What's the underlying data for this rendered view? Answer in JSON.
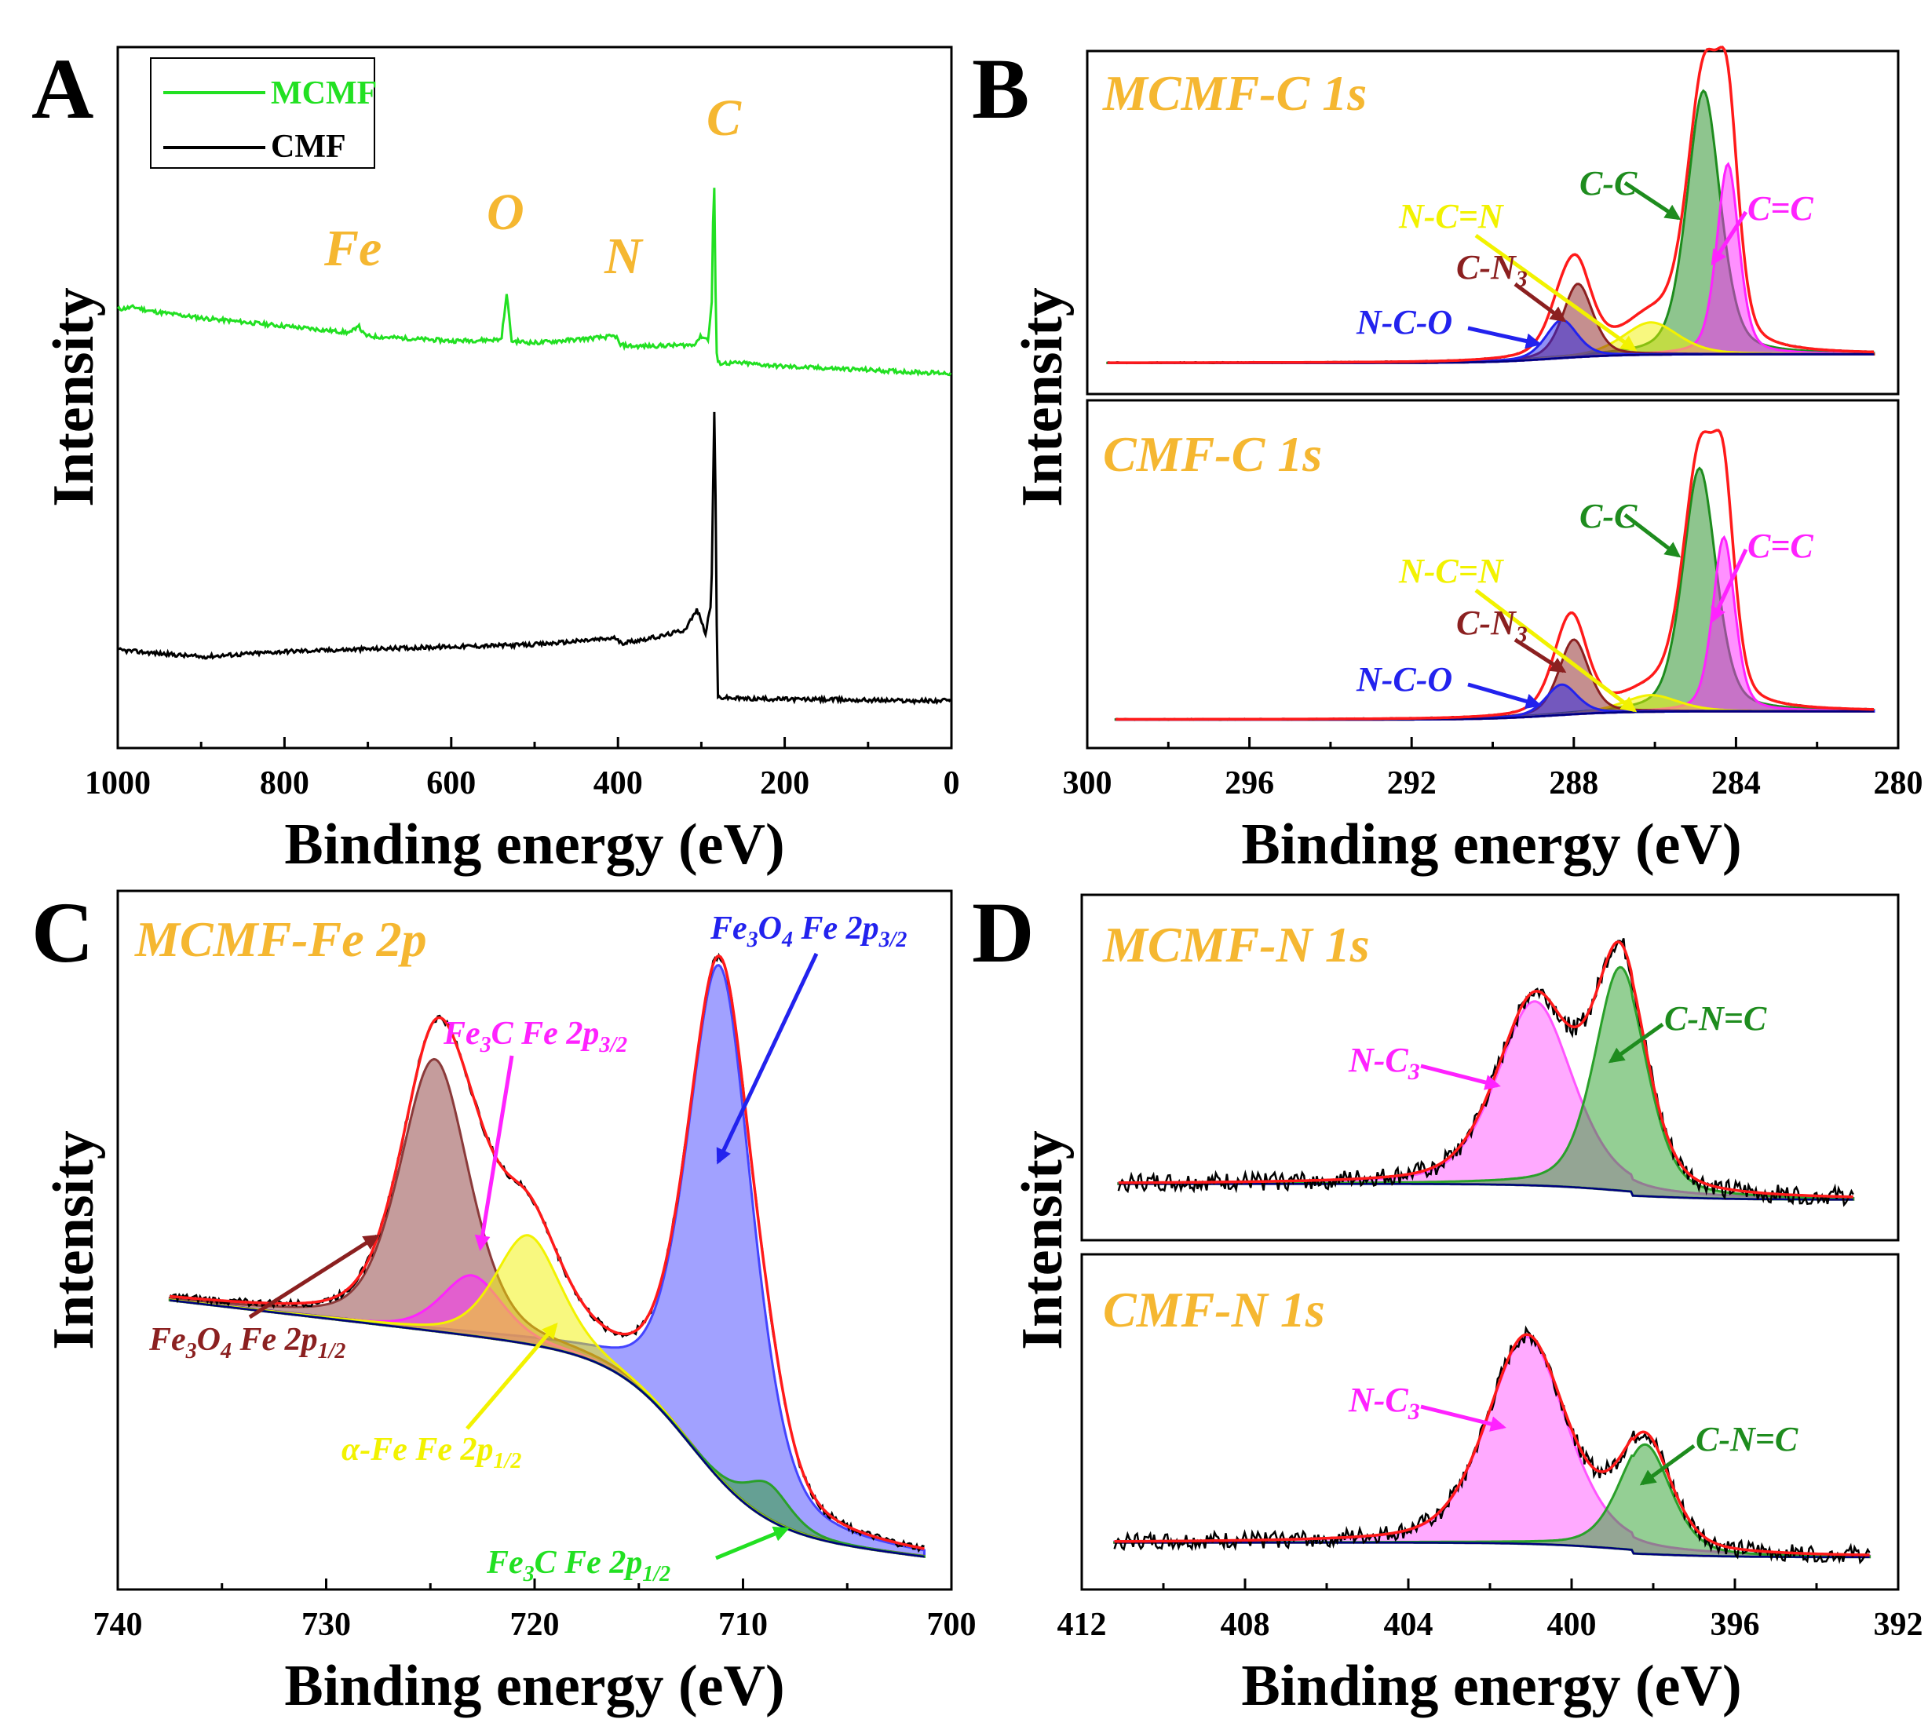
{
  "chart_data": [
    {
      "id": "A",
      "type": "line",
      "panel_letter": "A",
      "xlabel": "Binding energy (eV)",
      "ylabel": "Intensity",
      "xlim": [
        1000,
        0
      ],
      "xticks": [
        1000,
        800,
        600,
        400,
        200,
        0
      ],
      "legend": {
        "placement": "top-left",
        "entries": [
          {
            "name": "MCMF",
            "color": "#22e022"
          },
          {
            "name": "CMF",
            "color": "#000000"
          }
        ]
      },
      "element_labels": [
        {
          "text": "Fe",
          "x": 710
        },
        {
          "text": "O",
          "x": 531
        },
        {
          "text": "N",
          "x": 400
        },
        {
          "text": "C",
          "x": 284
        }
      ],
      "series": [
        {
          "name": "MCMF",
          "color": "#22e022",
          "x": [
            1000,
            980,
            960,
            900,
            800,
            720,
            712,
            705,
            700,
            600,
            540,
            533,
            528,
            500,
            402,
            398,
            380,
            310,
            300,
            292,
            287,
            285,
            284,
            282,
            280,
            250,
            200,
            100,
            50,
            0
          ],
          "y": [
            6.35,
            6.38,
            6.32,
            6.22,
            6.1,
            6.0,
            6.12,
            5.98,
            5.95,
            5.88,
            5.9,
            6.6,
            5.88,
            5.85,
            5.95,
            5.82,
            5.8,
            5.82,
            5.95,
            5.9,
            6.5,
            8.8,
            7.5,
            5.75,
            5.55,
            5.55,
            5.5,
            5.45,
            5.42,
            5.4
          ]
        },
        {
          "name": "CMF",
          "color": "#000000",
          "x": [
            1000,
            950,
            900,
            800,
            600,
            500,
            402,
            398,
            350,
            320,
            305,
            295,
            288,
            285,
            284,
            282,
            280,
            250,
            100,
            50,
            0
          ],
          "y": [
            1.3,
            1.25,
            1.2,
            1.28,
            1.35,
            1.38,
            1.48,
            1.4,
            1.5,
            1.6,
            1.9,
            1.55,
            2.0,
            4.5,
            5.2,
            2.0,
            0.6,
            0.58,
            0.56,
            0.55,
            0.55
          ]
        }
      ]
    },
    {
      "id": "B",
      "type": "line",
      "panel_letter": "B",
      "xlabel": "Binding energy (eV)",
      "ylabel": "Intensity",
      "xlim": [
        300,
        280
      ],
      "xticks": [
        300,
        296,
        292,
        288,
        284,
        280
      ],
      "subplots": [
        {
          "title": "MCMF-C 1s",
          "peaks": [
            {
              "label": "C-C",
              "center": 284.8,
              "height": 0.9,
              "width": 0.42,
              "color": "#1e8c1e"
            },
            {
              "label": "C=C",
              "center": 284.2,
              "height": 0.65,
              "width": 0.28,
              "color": "#ff22ff"
            },
            {
              "label": "N-C=N",
              "center": 286.1,
              "height": 0.11,
              "width": 0.7,
              "color": "#f2f200"
            },
            {
              "label": "C-N3",
              "center": 287.9,
              "height": 0.25,
              "width": 0.38,
              "color": "#8b2020"
            },
            {
              "label": "N-C-O",
              "center": 288.3,
              "height": 0.13,
              "width": 0.4,
              "color": "#2222ee"
            }
          ],
          "annotations": [
            {
              "text": "C-C",
              "target_x": 284.85
            },
            {
              "text": "C=C",
              "target_x": 284.25
            },
            {
              "text": "N-C=N",
              "target_x": 285.9
            },
            {
              "text": "C-N",
              "subscript": "3",
              "target_x": 287.95
            },
            {
              "text": "N-C-O",
              "target_x": 288.4
            }
          ]
        },
        {
          "title": "CMF-C 1s",
          "peaks": [
            {
              "label": "C-C",
              "center": 284.9,
              "height": 0.88,
              "width": 0.42,
              "color": "#1e8c1e"
            },
            {
              "label": "C=C",
              "center": 284.3,
              "height": 0.63,
              "width": 0.28,
              "color": "#ff22ff"
            },
            {
              "label": "N-C=N",
              "center": 286.1,
              "height": 0.06,
              "width": 0.7,
              "color": "#f2f200"
            },
            {
              "label": "C-N3",
              "center": 288.0,
              "height": 0.27,
              "width": 0.38,
              "color": "#8b2020"
            },
            {
              "label": "N-C-O",
              "center": 288.3,
              "height": 0.11,
              "width": 0.4,
              "color": "#2222ee"
            }
          ],
          "annotations": [
            {
              "text": "C-C",
              "target_x": 284.95
            },
            {
              "text": "C=C",
              "target_x": 284.35
            },
            {
              "text": "N-C=N",
              "target_x": 285.9
            },
            {
              "text": "C-N",
              "subscript": "3",
              "target_x": 288.05
            },
            {
              "text": "N-C-O",
              "target_x": 288.45
            }
          ]
        }
      ]
    },
    {
      "id": "C",
      "type": "line",
      "panel_letter": "C",
      "xlabel": "Binding energy (eV)",
      "ylabel": "Intensity",
      "xlim": [
        740,
        700
      ],
      "xticks": [
        740,
        730,
        720,
        710,
        700
      ],
      "title": "MCMF-Fe 2p",
      "peaks": [
        {
          "label": "Fe3O4 Fe 2p3/2",
          "center": 711.1,
          "height": 0.85,
          "width": 1.6,
          "color": "#4444ff"
        },
        {
          "label": "Fe3O4 Fe 2p1/2",
          "center": 724.8,
          "height": 0.45,
          "width": 1.7,
          "color": "#8b3a3a"
        },
        {
          "label": "Fe3C Fe 2p3/2",
          "center": 723.0,
          "height": 0.1,
          "width": 1.5,
          "color": "#ff22ff"
        },
        {
          "label": "α-Fe Fe 2p1/2",
          "center": 720.3,
          "height": 0.18,
          "width": 1.6,
          "color": "#f2f200"
        },
        {
          "label": "Fe3C Fe 2p1/2",
          "center": 708.8,
          "height": 0.06,
          "width": 1.1,
          "color": "#2aa02a"
        }
      ],
      "annotations": [
        {
          "main": "Fe",
          "sub1": "3",
          "mid": "O",
          "sub2": "4",
          "tail": " Fe 2p",
          "sub3": "3/2",
          "color": "#2222ee"
        },
        {
          "main": "Fe",
          "sub1": "3",
          "mid": "C Fe 2p",
          "sub2": "3/2",
          "color": "#ff22ff"
        },
        {
          "main": "Fe",
          "sub1": "3",
          "mid": "O",
          "sub2": "4",
          "tail": " Fe 2p",
          "sub3": "1/2",
          "color": "#8b2020"
        },
        {
          "main": "α-Fe Fe 2p",
          "sub1": "1/2",
          "color": "#f2f200"
        },
        {
          "main": "Fe",
          "sub1": "3",
          "mid": "C Fe 2p",
          "sub2": "1/2",
          "color": "#22e022"
        }
      ]
    },
    {
      "id": "D",
      "type": "line",
      "panel_letter": "D",
      "xlabel": "Binding energy (eV)",
      "ylabel": "Intensity",
      "xlim": [
        412,
        392
      ],
      "xticks": [
        412,
        408,
        404,
        400,
        396,
        392
      ],
      "subplots": [
        {
          "title": "MCMF-N 1s",
          "peaks": [
            {
              "label": "N-C3",
              "center": 400.9,
              "height": 0.7,
              "width": 0.95,
              "color": "#ff55ff"
            },
            {
              "label": "C-N=C",
              "center": 398.8,
              "height": 0.85,
              "width": 0.65,
              "color": "#2aa02a"
            }
          ],
          "annotations": [
            {
              "text": "N-C",
              "subscript": "3",
              "target_x": 401.3
            },
            {
              "text": "C-N=C",
              "target_x": 398.5
            }
          ]
        },
        {
          "title": "CMF-N 1s",
          "peaks": [
            {
              "label": "N-C3",
              "center": 401.1,
              "height": 0.85,
              "width": 1.0,
              "color": "#ff55ff"
            },
            {
              "label": "C-N=C",
              "center": 398.2,
              "height": 0.45,
              "width": 0.65,
              "color": "#2aa02a"
            }
          ],
          "annotations": [
            {
              "text": "N-C",
              "subscript": "3",
              "target_x": 401.3
            },
            {
              "text": "C-N=C",
              "target_x": 398.1
            }
          ]
        }
      ]
    }
  ]
}
